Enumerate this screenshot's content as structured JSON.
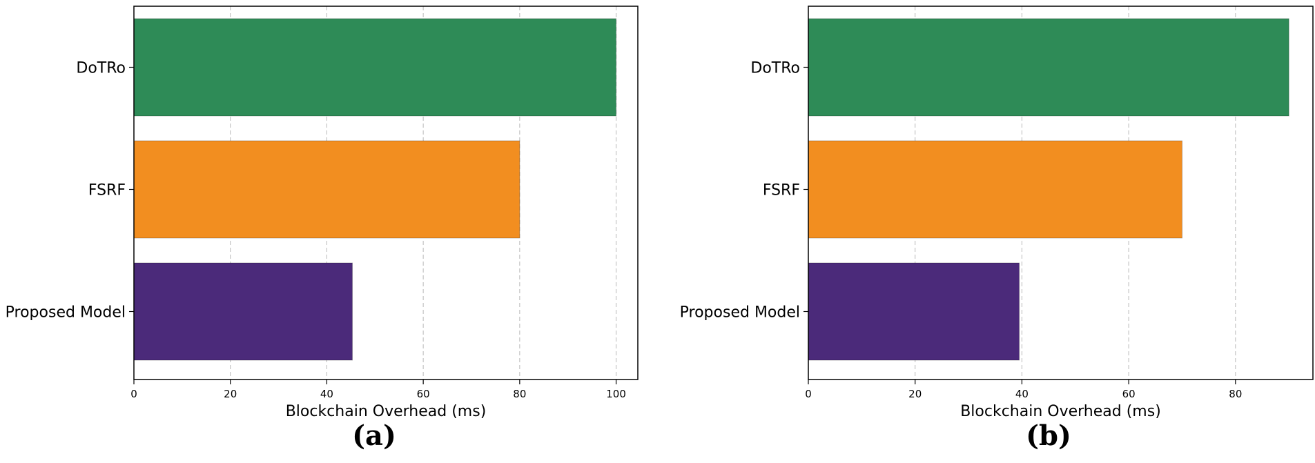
{
  "chart_data": [
    {
      "type": "bar",
      "orientation": "horizontal",
      "panel_label": "(a)",
      "categories": [
        "DoTRo",
        "FSRF",
        "Proposed Model"
      ],
      "values": [
        100,
        80,
        45.3
      ],
      "colors": [
        "#2e8b57",
        "#f28e20",
        "#4b2a7a"
      ],
      "xlabel": "Blockchain Overhead (ms)",
      "ylabel": "",
      "xlim": [
        0,
        104.5
      ],
      "xticks": [
        0,
        20,
        40,
        60,
        80,
        100
      ],
      "grid": "x-dashed"
    },
    {
      "type": "bar",
      "orientation": "horizontal",
      "panel_label": "(b)",
      "categories": [
        "DoTRo",
        "FSRF",
        "Proposed Model"
      ],
      "values": [
        90,
        70,
        39.5
      ],
      "colors": [
        "#2e8b57",
        "#f28e20",
        "#4b2a7a"
      ],
      "xlabel": "Blockchain Overhead (ms)",
      "ylabel": "",
      "xlim": [
        0,
        94.5
      ],
      "xticks": [
        0,
        20,
        40,
        60,
        80
      ],
      "grid": "x-dashed"
    }
  ]
}
